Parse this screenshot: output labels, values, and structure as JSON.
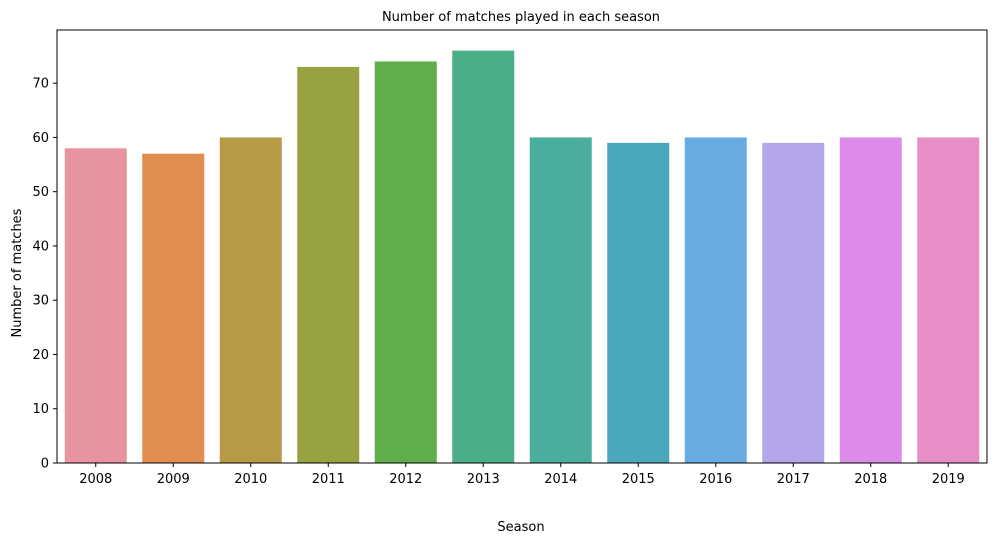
{
  "chart_data": {
    "type": "bar",
    "title": "Number of matches played in each season",
    "xlabel": "Season",
    "ylabel": "Number of matches",
    "categories": [
      "2008",
      "2009",
      "2010",
      "2011",
      "2012",
      "2013",
      "2014",
      "2015",
      "2016",
      "2017",
      "2018",
      "2019"
    ],
    "values": [
      58,
      57,
      60,
      73,
      74,
      76,
      60,
      59,
      60,
      59,
      60,
      60
    ],
    "colors": [
      "#e8949f",
      "#e08d4f",
      "#b69a47",
      "#99a243",
      "#5fae49",
      "#4bae87",
      "#4aad9e",
      "#4ba7bc",
      "#68abe0",
      "#b5a5eb",
      "#dd8be8",
      "#e78ec4"
    ],
    "ylim": [
      0,
      79.8
    ],
    "yticks": [
      0,
      10,
      20,
      30,
      40,
      50,
      60,
      70
    ],
    "grid": false,
    "legend": "none"
  }
}
